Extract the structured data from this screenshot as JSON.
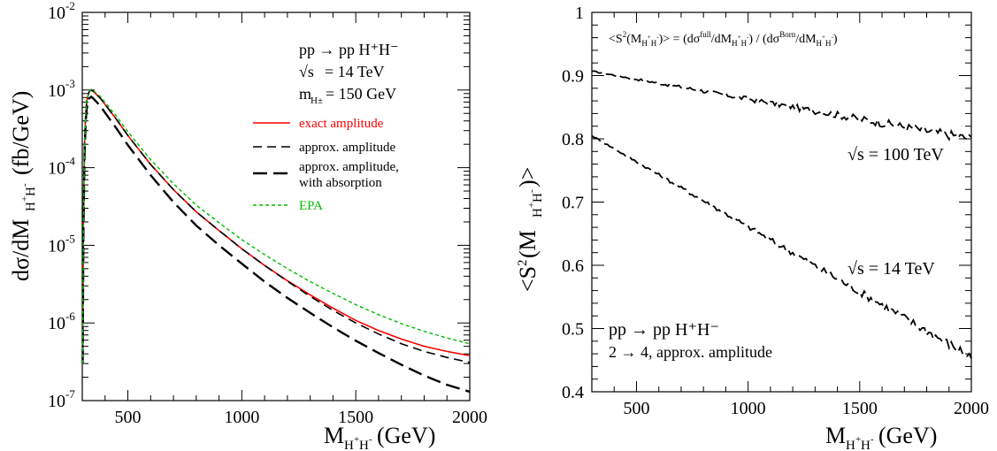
{
  "chart_data": [
    {
      "type": "line",
      "xlabel_main": "M",
      "xlabel_sub": "H",
      "xlabel_sup1": "+",
      "xlabel_sub2": "H",
      "xlabel_sup2": "-",
      "xlabel_unit": "(GeV)",
      "ylabel_main": "dσ/dM",
      "ylabel_unit": "(fb/GeV)",
      "xlim": [
        300,
        2000
      ],
      "ylim": [
        1e-07,
        0.01
      ],
      "yscale": "log",
      "xticks": [
        500,
        1000,
        1500,
        2000
      ],
      "yticks": [
        {
          "value": 1e-07,
          "base": "10",
          "exp": "-7"
        },
        {
          "value": 1e-06,
          "base": "10",
          "exp": "-6"
        },
        {
          "value": 1e-05,
          "base": "10",
          "exp": "-5"
        },
        {
          "value": 0.0001,
          "base": "10",
          "exp": "-4"
        },
        {
          "value": 0.001,
          "base": "10",
          "exp": "-3"
        },
        {
          "value": 0.01,
          "base": "10",
          "exp": "-2"
        }
      ],
      "annotations": {
        "process": "pp → pp H⁺H⁻",
        "energy_root": "√s",
        "energy_value": "= 14 TeV",
        "mass_label": "m",
        "mass_sub": "H±",
        "mass_value": "= 150 GeV"
      },
      "legend": {
        "placement": "upper-right",
        "entries": [
          {
            "label": "exact amplitude",
            "color": "#ff0000",
            "style": "solid"
          },
          {
            "label": "approx. amplitude",
            "color": "#000000",
            "style": "dashed"
          },
          {
            "label": "approx. amplitude,",
            "label2": "with absorption",
            "color": "#000000",
            "style": "longdash"
          },
          {
            "label": "EPA",
            "color": "#00bb00",
            "style": "dotted"
          }
        ]
      },
      "series": [
        {
          "name": "exact amplitude",
          "color": "#ff0000",
          "x": [
            302,
            305,
            310,
            315,
            320,
            330,
            340,
            350,
            380,
            400,
            450,
            500,
            600,
            700,
            800,
            900,
            1000,
            1100,
            1200,
            1300,
            1400,
            1500,
            1600,
            1700,
            1800,
            1900,
            2000
          ],
          "y": [
            3e-07,
            2e-05,
            0.0002,
            0.0005,
            0.00075,
            0.00095,
            0.001,
            0.00095,
            0.00078,
            0.00065,
            0.00042,
            0.00026,
            0.00011,
            5.2e-05,
            2.7e-05,
            1.55e-05,
            9e-06,
            5.5e-06,
            3.5e-06,
            2.3e-06,
            1.55e-06,
            1.08e-06,
            8e-07,
            6.2e-07,
            5e-07,
            4.3e-07,
            3.8e-07
          ]
        },
        {
          "name": "approx. amplitude",
          "color": "#000000",
          "x": [
            302,
            305,
            310,
            315,
            320,
            330,
            340,
            350,
            380,
            400,
            450,
            500,
            600,
            700,
            800,
            900,
            1000,
            1100,
            1200,
            1300,
            1400,
            1500,
            1600,
            1700,
            1800,
            1900,
            2000
          ],
          "y": [
            3e-07,
            2e-05,
            0.0002,
            0.0005,
            0.00075,
            0.00095,
            0.001,
            0.00095,
            0.00078,
            0.00065,
            0.00042,
            0.00026,
            0.00011,
            5.2e-05,
            2.7e-05,
            1.55e-05,
            9e-06,
            5.5e-06,
            3.45e-06,
            2.2e-06,
            1.45e-06,
            1e-06,
            7.2e-07,
            5.4e-07,
            4.3e-07,
            3.6e-07,
            3.1e-07
          ]
        },
        {
          "name": "approx. amplitude, with absorption",
          "color": "#000000",
          "x": [
            302,
            305,
            310,
            315,
            320,
            330,
            340,
            350,
            380,
            400,
            450,
            500,
            600,
            700,
            800,
            900,
            1000,
            1100,
            1200,
            1300,
            1400,
            1500,
            1600,
            1700,
            1800,
            1900,
            2000
          ],
          "y": [
            3e-07,
            1.5e-05,
            0.00015,
            0.0004,
            0.0006,
            0.00078,
            0.00082,
            0.00077,
            0.00062,
            0.00051,
            0.00032,
            0.000195,
            8e-05,
            3.6e-05,
            1.8e-05,
            1e-05,
            5.8e-06,
            3.4e-06,
            2.1e-06,
            1.35e-06,
            8.8e-07,
            5.9e-07,
            4.1e-07,
            2.9e-07,
            2.1e-07,
            1.6e-07,
            1.3e-07
          ]
        },
        {
          "name": "EPA",
          "color": "#00bb00",
          "x": [
            302,
            305,
            310,
            315,
            320,
            330,
            340,
            350,
            380,
            400,
            450,
            500,
            600,
            700,
            800,
            900,
            1000,
            1100,
            1200,
            1300,
            1400,
            1500,
            1600,
            1700,
            1800,
            1900,
            2000
          ],
          "y": [
            3e-07,
            2e-05,
            0.0002,
            0.0005,
            0.00075,
            0.00095,
            0.00102,
            0.00098,
            0.00082,
            0.00069,
            0.00046,
            0.00029,
            0.000127,
            6.2e-05,
            3.3e-05,
            1.95e-05,
            1.18e-05,
            7.6e-06,
            5e-06,
            3.4e-06,
            2.4e-06,
            1.72e-06,
            1.28e-06,
            9.8e-07,
            7.8e-07,
            6.4e-07,
            5.4e-07
          ]
        }
      ]
    },
    {
      "type": "line",
      "xlabel_main": "M",
      "xlabel_unit": "(GeV)",
      "ylabel_main": "<S",
      "ylabel_sup": "2",
      "ylabel_mid": "(M",
      "ylabel_end": ")>",
      "xlim": [
        300,
        2000
      ],
      "ylim": [
        0.4,
        1.0
      ],
      "xticks": [
        500,
        1000,
        1500,
        2000
      ],
      "yticks": [
        "0.4",
        "0.5",
        "0.6",
        "0.7",
        "0.8",
        "0.9",
        "1"
      ],
      "header": "<S²(M_{H⁺H⁻})> = (dσ^{full}/dM_{H⁺H⁻}) / (dσ^{Born}/dM_{H⁺H⁻})",
      "annotations": {
        "label_100": "√s = 100 TeV",
        "label_14": "√s = 14 TeV",
        "process": "pp → pp H⁺H⁻",
        "approx": "2 → 4,  approx. amplitude"
      },
      "series": [
        {
          "name": "√s = 100 TeV",
          "color": "#000000",
          "y_start": 0.907,
          "y_end": 0.8,
          "x_start": 300,
          "x_end": 2000
        },
        {
          "name": "√s = 14 TeV",
          "color": "#000000",
          "y_start": 0.805,
          "y_end": 0.455,
          "x_start": 300,
          "x_end": 2000
        }
      ]
    }
  ]
}
